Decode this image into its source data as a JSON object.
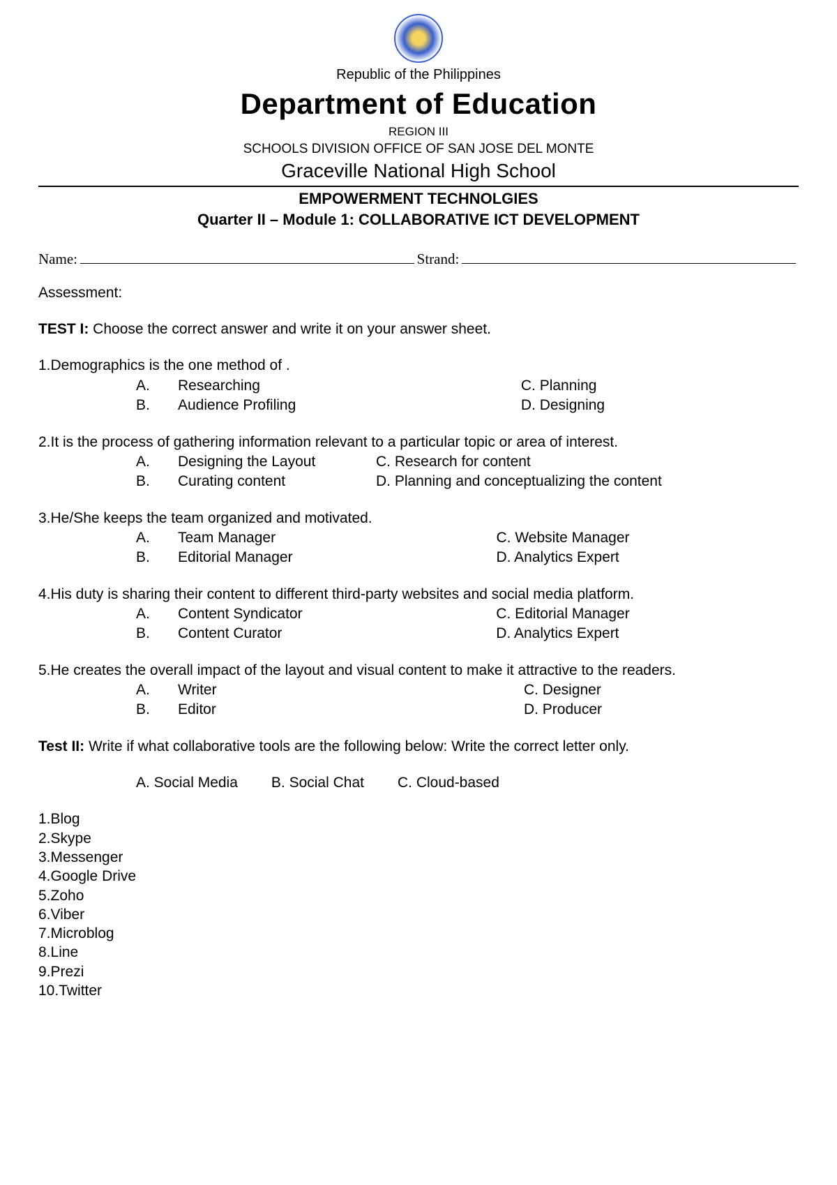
{
  "header": {
    "republic": "Republic of the Philippines",
    "department": "Department of Education",
    "region": "REGION III",
    "division": "SCHOOLS DIVISION OFFICE OF SAN JOSE DEL MONTE",
    "school": "Graceville National High School",
    "subject": "EMPOWERMENT TECHNOLGIES",
    "module": "Quarter II – Module 1: COLLABORATIVE ICT DEVELOPMENT"
  },
  "form": {
    "name_label": "Name:",
    "strand_label": "Strand:"
  },
  "assessment_label": "Assessment:",
  "test1": {
    "label": "TEST I:",
    "instruction": " Choose the correct answer and write it on your answer sheet.",
    "questions": [
      {
        "num": "1.",
        "text": "Demographics is the one method of    .",
        "options": {
          "A": "Researching",
          "B": "Audience Profiling",
          "C": "C. Planning",
          "D": "D. Designing"
        }
      },
      {
        "num": "2.",
        "text": "It is the process of gathering information relevant to a particular topic or area of interest.",
        "options": {
          "A": "Designing the Layout",
          "B": "Curating content",
          "C": "C. Research for content",
          "D": "D. Planning and conceptualizing the content"
        }
      },
      {
        "num": "3.",
        "text": "He/She keeps the team organized and motivated.",
        "options": {
          "A": "Team Manager",
          "B": "Editorial Manager",
          "C": "C. Website Manager",
          "D": "D. Analytics Expert"
        }
      },
      {
        "num": "4.",
        "text": "His duty is sharing their content to different third-party websites and social media platform.",
        "options": {
          "A": "Content Syndicator",
          "B": "Content Curator",
          "C": "C. Editorial Manager",
          "D": "D. Analytics Expert"
        }
      },
      {
        "num": "5.",
        "text": "He creates the overall impact of the layout and visual content to make it attractive to the readers.",
        "options": {
          "A": "Writer",
          "B": "Editor",
          "C": "C. Designer",
          "D": "D. Producer"
        }
      }
    ]
  },
  "test2": {
    "label": "Test II:",
    "instruction": " Write if what collaborative tools are the following below: Write the correct letter only.",
    "options": {
      "A": "A. Social Media",
      "B": "B. Social Chat",
      "C": "C. Cloud-based"
    },
    "items": [
      "1.Blog",
      "2.Skype",
      "3.Messenger",
      "4.Google Drive",
      "5.Zoho",
      "6.Viber",
      "7.Microblog",
      "8.Line",
      "9.Prezi",
      "10.Twitter"
    ]
  }
}
